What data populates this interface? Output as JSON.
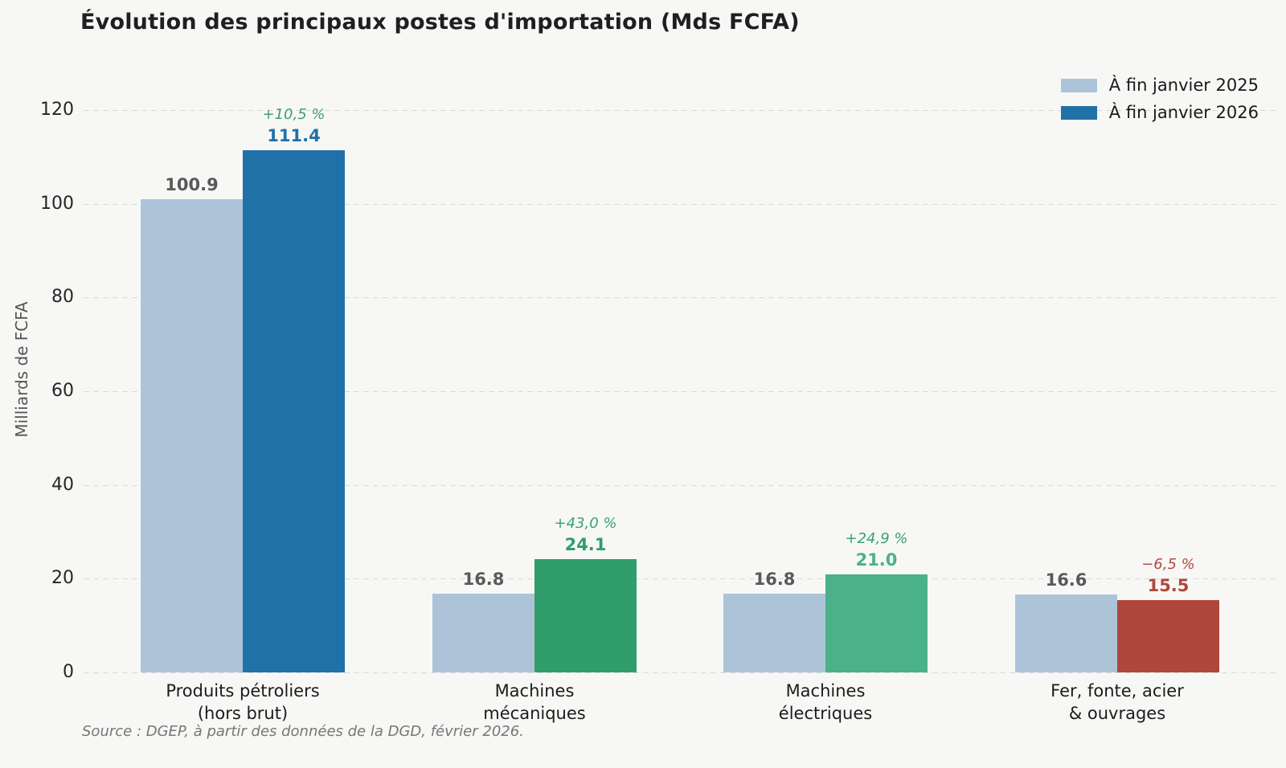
{
  "title": "Évolution des principaux postes d'importation (Mds FCFA)",
  "source": "Source : DGEP, à partir des données de la DGD, février 2026.",
  "y_axis": {
    "label": "Milliards de FCFA",
    "ticks": [
      0,
      20,
      40,
      60,
      80,
      100,
      120
    ]
  },
  "legend": {
    "position": "upper right",
    "items": [
      {
        "label": "À fin janvier 2025",
        "color": "#adc4d8"
      },
      {
        "label": "À fin janvier 2026",
        "color": "#2171a9"
      }
    ]
  },
  "chart_data": {
    "type": "bar",
    "title": "Évolution des principaux postes d'importation (Mds FCFA)",
    "ylabel": "Milliards de FCFA",
    "ylim": [
      0,
      120
    ],
    "grid": "horizontal-dashed",
    "categories": [
      "Produits pétroliers\n(hors brut)",
      "Machines\nmécaniques",
      "Machines\nélectriques",
      "Fer, fonte, acier\n& ouvrages"
    ],
    "series": [
      {
        "name": "À fin janvier 2025",
        "values": [
          100.9,
          16.8,
          16.8,
          16.6
        ],
        "color": "#adc4d8",
        "value_label_color": "#595959"
      },
      {
        "name": "À fin janvier 2026",
        "values": [
          111.4,
          24.1,
          21.0,
          15.5
        ],
        "colors": [
          "#2171a9",
          "#319d6a",
          "#4bb189",
          "#b0473c"
        ]
      }
    ],
    "pct_change_labels": [
      "+10,5 %",
      "+43,0 %",
      "+24,9 %",
      "−6,5 %"
    ],
    "pct_change_colors": [
      "#3da173",
      "#3da173",
      "#3da173",
      "#b5493f"
    ]
  },
  "colors": {
    "background": "#f7f8f5",
    "gridline": "#d9d9d9",
    "title_text": "#1f1f1f",
    "tick_text": "#262626",
    "axis_label_text": "#555555",
    "source_text": "#767676"
  }
}
